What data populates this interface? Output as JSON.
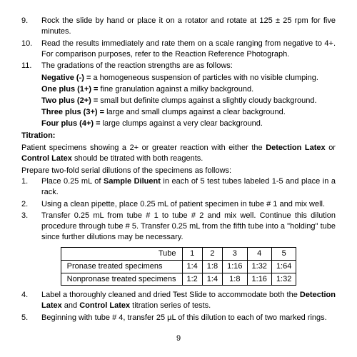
{
  "steps_a": [
    {
      "n": "9.",
      "t": "Rock the slide by hand or place it on a rotator and rotate at 125 ± 25 rpm for five minutes."
    },
    {
      "n": "10.",
      "t": "Read the results immediately and rate them on a scale ranging from negative to 4+.  For comparison purposes, refer to the Reaction Reference Photograph."
    },
    {
      "n": "11.",
      "t": "The gradations of the reaction strengths are as follows:"
    }
  ],
  "grads": [
    {
      "b": "Negative (-) = ",
      "t": "a homogeneous suspension of particles with no visible clumping."
    },
    {
      "b": "One plus (1+) = ",
      "t": "fine granulation against a milky background."
    },
    {
      "b": "Two plus (2+) = ",
      "t": "small but definite clumps against a slightly cloudy background."
    },
    {
      "b": "Three plus (3+) = ",
      "t": "large and small clumps against a clear background."
    },
    {
      "b": "Four plus (4+) = ",
      "t": "large clumps against a very clear background."
    }
  ],
  "titration_head": "Titration:",
  "titration_p1a": "Patient specimens showing a 2+ or greater reaction with either the ",
  "titration_p1b": "Detection Latex",
  "titration_p1c": " or ",
  "titration_p1d": "Control Latex",
  "titration_p1e": " should be titrated with both reagents.",
  "titration_p2": "Prepare two-fold serial dilutions of the specimens as follows:",
  "steps_b": [
    {
      "n": "1.",
      "pre": "Place 0.25 mL of ",
      "bold": "Sample Diluent",
      "post": " in each of 5 test tubes labeled 1-5 and place in a rack."
    },
    {
      "n": "2.",
      "pre": "Using a clean pipette, place 0.25 mL of patient specimen in tube # 1 and mix well.",
      "bold": "",
      "post": ""
    },
    {
      "n": "3.",
      "pre": "Transfer 0.25 mL from tube # 1 to tube # 2 and mix well.  Continue this dilution procedure through tube # 5.  Transfer 0.25 mL from the fifth tube into a \"holding\" tube since further dilutions may be necessary.",
      "bold": "",
      "post": ""
    }
  ],
  "table": {
    "header": [
      "Tube",
      "1",
      "2",
      "3",
      "4",
      "5"
    ],
    "rows": [
      {
        "label": "Pronase treated specimens",
        "vals": [
          "1:4",
          "1:8",
          "1:16",
          "1:32",
          "1:64"
        ]
      },
      {
        "label": "Nonpronase treated specimens",
        "vals": [
          "1:2",
          "1:4",
          "1:8",
          "1:16",
          "1:32"
        ]
      }
    ],
    "col_label_w": 180,
    "col_val_w": 38
  },
  "steps_c": [
    {
      "n": "4.",
      "pre": "Label a thoroughly cleaned and dried Test Slide to accommodate both the ",
      "b1": "Detection Latex",
      "mid": " and ",
      "b2": "Control Latex",
      "post": " titration series of tests."
    },
    {
      "n": "5.",
      "pre": "Beginning with tube # 4, transfer 25 µL of this dilution to each of two marked rings.",
      "b1": "",
      "mid": "",
      "b2": "",
      "post": ""
    }
  ],
  "page": "9"
}
